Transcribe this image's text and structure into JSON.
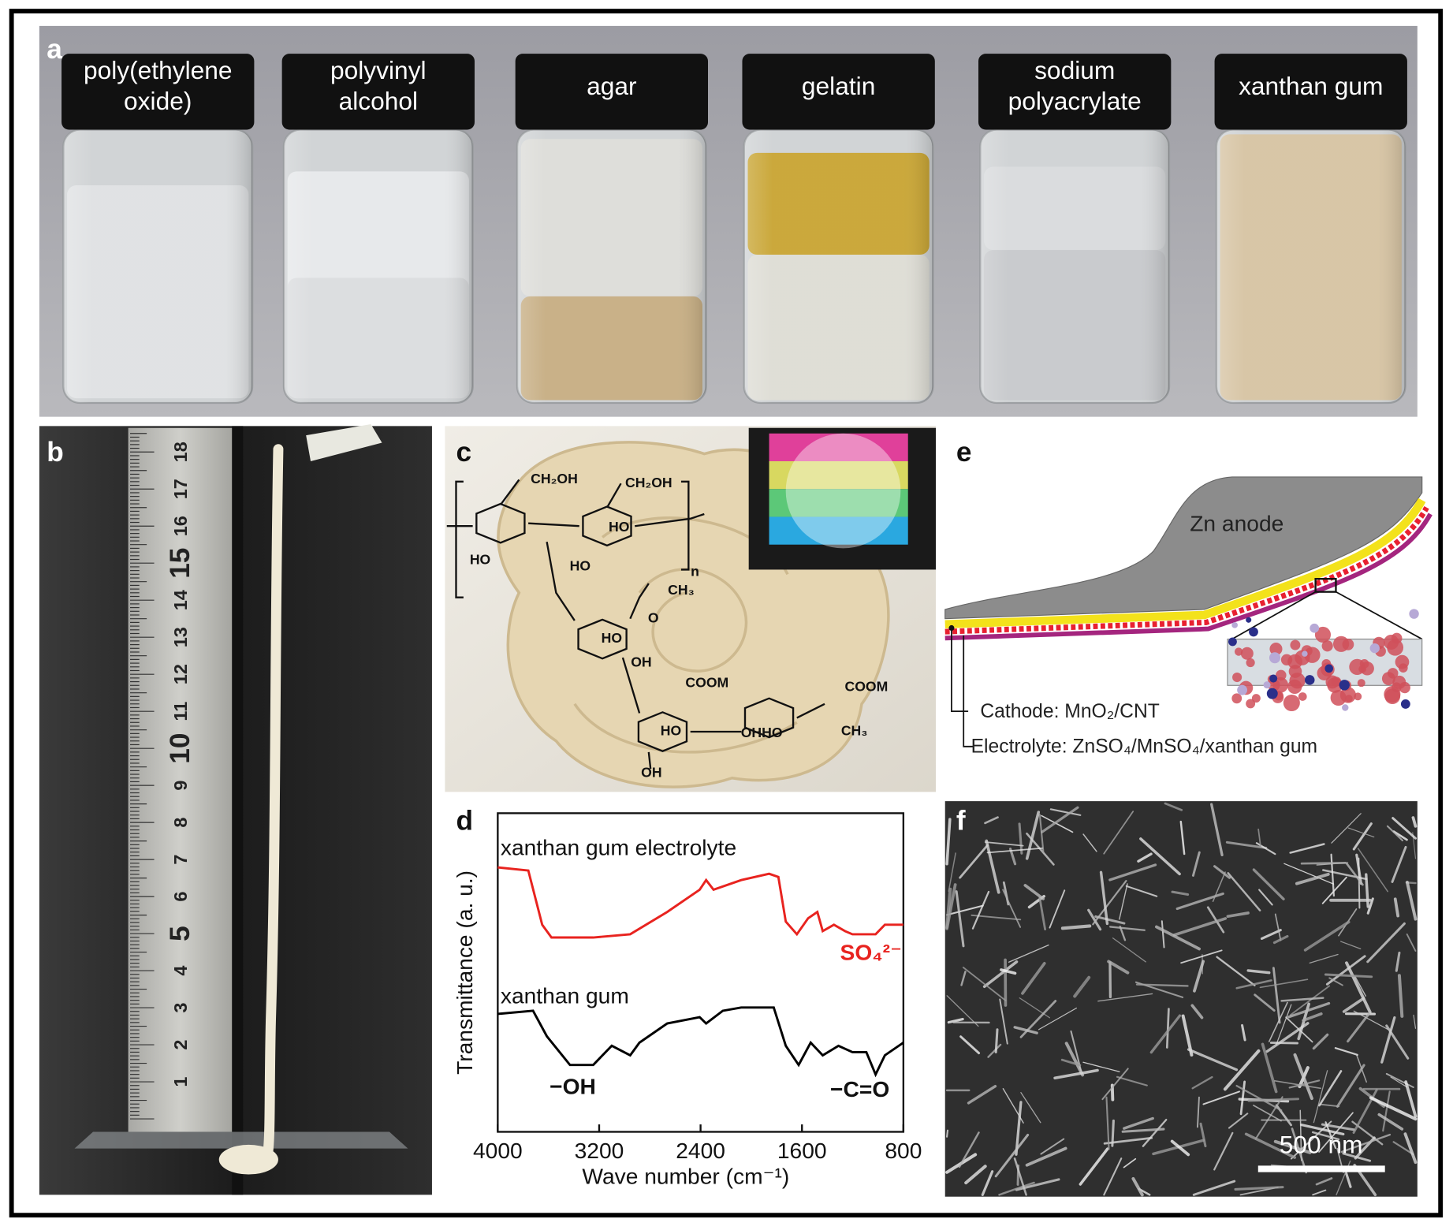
{
  "panels": {
    "a": {
      "label": "a",
      "vials": [
        [
          "poly(ethylene",
          "oxide)"
        ],
        [
          "polyvinyl",
          "alcohol"
        ],
        [
          "agar"
        ],
        [
          "gelatin"
        ],
        [
          "sodium",
          "polyacrylate"
        ],
        [
          "xanthan gum"
        ]
      ]
    },
    "b": {
      "label": "b",
      "ruler_marks": [
        "1",
        "2",
        "3",
        "4",
        "5",
        "6",
        "7",
        "8",
        "9",
        "10",
        "11",
        "12",
        "13",
        "14",
        "15",
        "16",
        "17",
        "18"
      ]
    },
    "c": {
      "label": "c",
      "structure_labels": [
        "CH₂OH",
        "CH₂OH",
        "HO",
        "HO",
        "HO",
        "n",
        "CH₃",
        "O",
        "HO",
        "OH",
        "COOM",
        "COOM",
        "HO",
        "OHHO",
        "CH₃",
        "OH"
      ]
    },
    "d": {
      "label": "d",
      "chart": {
        "type": "line",
        "xlabel": "Wave number (cm⁻¹)",
        "ylabel": "Transmittance (a. u.)",
        "xlim": [
          4000,
          800
        ],
        "xticks": [
          4000,
          3200,
          2400,
          1600,
          800
        ],
        "ylim": [
          0,
          1
        ],
        "series": [
          {
            "name": "xanthan gum electrolyte",
            "color": "#e8231f",
            "x": [
              4000,
              3759,
              3649,
              3576,
              3247,
              2955,
              2663,
              2407,
              2356,
              2298,
              2079,
              1859,
              1786,
              1728,
              1640,
              1552,
              1479,
              1436,
              1348,
              1260,
              1202,
              1019,
              946,
              800
            ],
            "values": [
              0.83,
              0.82,
              0.65,
              0.61,
              0.61,
              0.62,
              0.69,
              0.76,
              0.79,
              0.76,
              0.79,
              0.81,
              0.8,
              0.66,
              0.62,
              0.67,
              0.69,
              0.63,
              0.65,
              0.63,
              0.62,
              0.62,
              0.65,
              0.65
            ]
          },
          {
            "name": "xanthan gum",
            "color": "#000000",
            "x": [
              4000,
              3722,
              3613,
              3430,
              3247,
              3101,
              2955,
              2882,
              2663,
              2407,
              2356,
              2225,
              2079,
              1823,
              1728,
              1626,
              1531,
              1436,
              1312,
              1202,
              1092,
              1019,
              946,
              800
            ],
            "values": [
              0.37,
              0.38,
              0.3,
              0.21,
              0.21,
              0.27,
              0.24,
              0.28,
              0.34,
              0.36,
              0.34,
              0.38,
              0.39,
              0.39,
              0.27,
              0.21,
              0.28,
              0.24,
              0.27,
              0.25,
              0.25,
              0.18,
              0.24,
              0.28
            ]
          }
        ],
        "annotations": [
          "SO₄²⁻",
          "−OH",
          "−C=O"
        ]
      }
    },
    "e": {
      "label": "e",
      "anode": "Zn anode",
      "cathode": "Cathode: MnO₂/CNT",
      "electrolyte": "Electrolyte: ZnSO₄/MnSO₄/xanthan gum"
    },
    "f": {
      "label": "f",
      "scale_bar": "500 nm"
    }
  }
}
